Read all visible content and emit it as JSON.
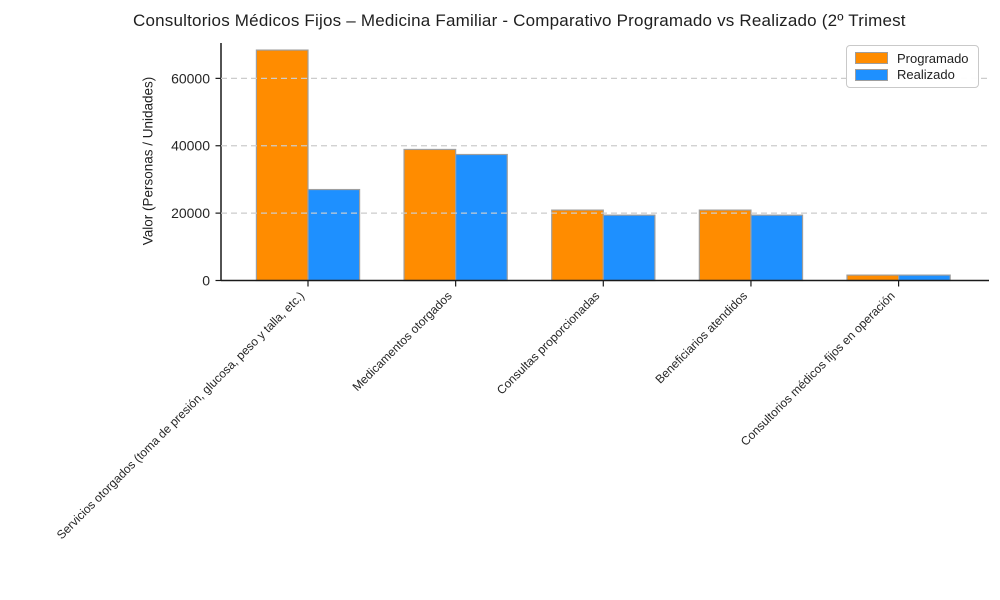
{
  "chart_data": {
    "type": "bar",
    "title": "Consultorios Médicos Fijos – Medicina Familiar - Comparativo Programado vs Realizado (2º Trimest",
    "ylabel": "Valor (Personas / Unidades)",
    "categories": [
      "Servicios otorgados (toma de presión, glucosa, peso y talla, etc.)",
      "Medicamentos otorgados",
      "Consultas proporcionadas",
      "Beneficiarios atendidos",
      "Consultorios médicos fijos en operación"
    ],
    "series": [
      {
        "name": "Programado",
        "color": "#FF8C00",
        "values": [
          68400,
          38900,
          20900,
          20900,
          1600
        ]
      },
      {
        "name": "Realizado",
        "color": "#1E90FF",
        "values": [
          27000,
          37400,
          19400,
          19400,
          1600
        ]
      }
    ],
    "ylim": [
      0,
      70500
    ],
    "yticks": [
      0,
      20000,
      40000,
      60000
    ],
    "bar_edge_color": "#9e9e9e",
    "grid": {
      "axis": "y",
      "style": "dashed",
      "color": "#cccccc",
      "on_top": true
    },
    "legend": {
      "position": "upper-right"
    }
  }
}
